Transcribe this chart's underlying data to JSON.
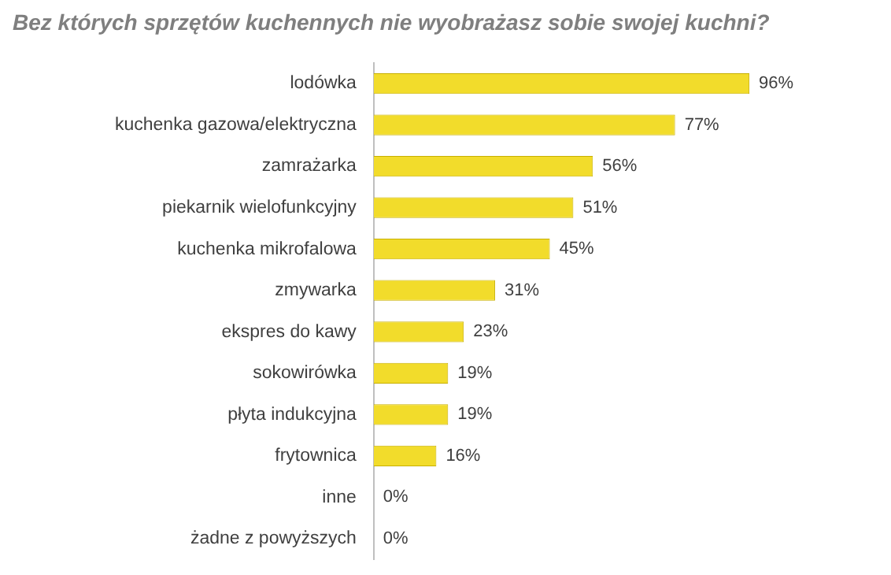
{
  "chart_data": {
    "type": "bar",
    "orientation": "horizontal",
    "title": "Bez których sprzętów kuchennych nie wyobrażasz sobie swojej kuchni?",
    "categories": [
      "lodówka",
      "kuchenka gazowa/elektryczna",
      "zamrażarka",
      "piekarnik wielofunkcyjny",
      "kuchenka mikrofalowa",
      "zmywarka",
      "ekspres do kawy",
      "sokowirówka",
      "płyta indukcyjna",
      "frytownica",
      "inne",
      "żadne z powyższych"
    ],
    "values": [
      96,
      77,
      56,
      51,
      45,
      31,
      23,
      19,
      19,
      16,
      0,
      0
    ],
    "value_labels": [
      "96%",
      "77%",
      "56%",
      "51%",
      "45%",
      "31%",
      "23%",
      "19%",
      "19%",
      "16%",
      "0%",
      "0%"
    ],
    "color": "#f2dc2b",
    "tick_labels": "y",
    "grid": false,
    "legend": false
  }
}
